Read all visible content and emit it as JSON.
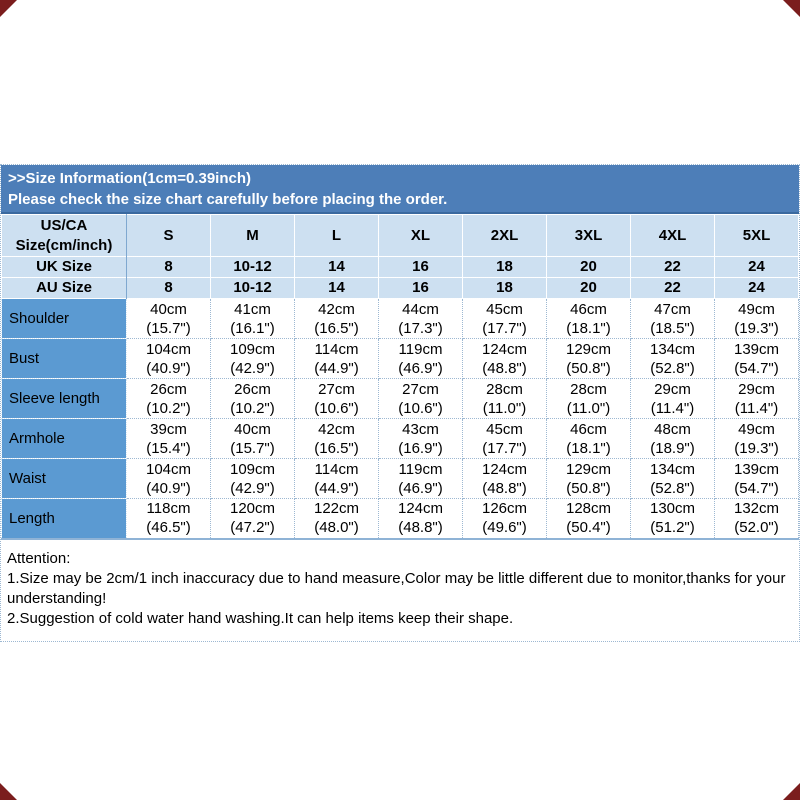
{
  "banner": {
    "line1": ">>Size Information(1cm=0.39inch)",
    "line2": "Please check the size chart carefully before placing the order."
  },
  "size_table": {
    "corner_header_line1": "US/CA",
    "corner_header_line2": "Size(cm/inch)",
    "size_labels": [
      "S",
      "M",
      "L",
      "XL",
      "2XL",
      "3XL",
      "4XL",
      "5XL"
    ],
    "uk_row": {
      "label": "UK Size",
      "values": [
        "8",
        "10-12",
        "14",
        "16",
        "18",
        "20",
        "22",
        "24"
      ]
    },
    "au_row": {
      "label": "AU Size",
      "values": [
        "8",
        "10-12",
        "14",
        "16",
        "18",
        "20",
        "22",
        "24"
      ]
    },
    "measurements": [
      {
        "label": "Shoulder",
        "cm": [
          "40cm",
          "41cm",
          "42cm",
          "44cm",
          "45cm",
          "46cm",
          "47cm",
          "49cm"
        ],
        "inch": [
          "(15.7\")",
          "(16.1\")",
          "(16.5\")",
          "(17.3\")",
          "(17.7\")",
          "(18.1\")",
          "(18.5\")",
          "(19.3\")"
        ]
      },
      {
        "label": "Bust",
        "cm": [
          "104cm",
          "109cm",
          "114cm",
          "119cm",
          "124cm",
          "129cm",
          "134cm",
          "139cm"
        ],
        "inch": [
          "(40.9\")",
          "(42.9\")",
          "(44.9\")",
          "(46.9\")",
          "(48.8\")",
          "(50.8\")",
          "(52.8\")",
          "(54.7\")"
        ]
      },
      {
        "label": "Sleeve length",
        "cm": [
          "26cm",
          "26cm",
          "27cm",
          "27cm",
          "28cm",
          "28cm",
          "29cm",
          "29cm"
        ],
        "inch": [
          "(10.2\")",
          "(10.2\")",
          "(10.6\")",
          "(10.6\")",
          "(11.0\")",
          "(11.0\")",
          "(11.4\")",
          "(11.4\")"
        ]
      },
      {
        "label": "Armhole",
        "cm": [
          "39cm",
          "40cm",
          "42cm",
          "43cm",
          "45cm",
          "46cm",
          "48cm",
          "49cm"
        ],
        "inch": [
          "(15.4\")",
          "(15.7\")",
          "(16.5\")",
          "(16.9\")",
          "(17.7\")",
          "(18.1\")",
          "(18.9\")",
          "(19.3\")"
        ]
      },
      {
        "label": "Waist",
        "cm": [
          "104cm",
          "109cm",
          "114cm",
          "119cm",
          "124cm",
          "129cm",
          "134cm",
          "139cm"
        ],
        "inch": [
          "(40.9\")",
          "(42.9\")",
          "(44.9\")",
          "(46.9\")",
          "(48.8\")",
          "(50.8\")",
          "(52.8\")",
          "(54.7\")"
        ]
      },
      {
        "label": "Length",
        "cm": [
          "118cm",
          "120cm",
          "122cm",
          "124cm",
          "126cm",
          "128cm",
          "130cm",
          "132cm"
        ],
        "inch": [
          "(46.5\")",
          "(47.2\")",
          "(48.0\")",
          "(48.8\")",
          "(49.6\")",
          "(50.4\")",
          "(51.2\")",
          "(52.0\")"
        ]
      }
    ]
  },
  "attention": {
    "title": "Attention:",
    "line1": "1.Size may be 2cm/1 inch inaccuracy due to hand measure,Color may be little different due to monitor,thanks for your understanding!",
    "line2": "2.Suggestion of cold water hand washing.It can help items keep their shape."
  },
  "colors": {
    "banner_blue": "#4d7eb8",
    "header_light_blue": "#cde0f1",
    "row_label_blue": "#5b9ad2",
    "border_blue": "#9db8d2",
    "corner_mark_red": "#7b1d1d",
    "banner_text": "#ffffff",
    "body_text": "#000000"
  }
}
